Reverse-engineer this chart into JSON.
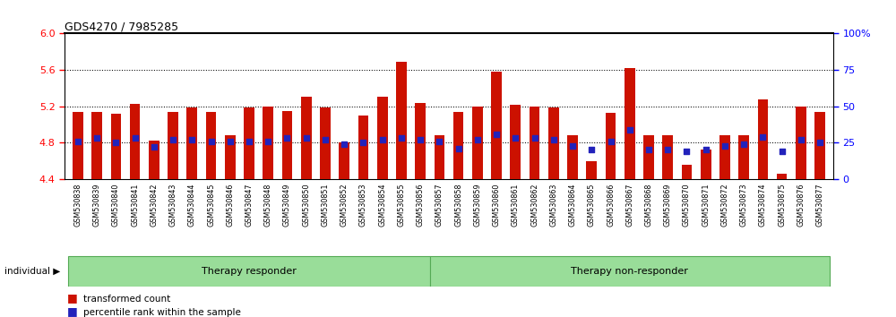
{
  "title": "GDS4270 / 7985285",
  "samples": [
    "GSM530838",
    "GSM530839",
    "GSM530840",
    "GSM530841",
    "GSM530842",
    "GSM530843",
    "GSM530844",
    "GSM530845",
    "GSM530846",
    "GSM530847",
    "GSM530848",
    "GSM530849",
    "GSM530850",
    "GSM530851",
    "GSM530852",
    "GSM530853",
    "GSM530854",
    "GSM530855",
    "GSM530856",
    "GSM530857",
    "GSM530858",
    "GSM530859",
    "GSM530860",
    "GSM530861",
    "GSM530862",
    "GSM530863",
    "GSM530864",
    "GSM530865",
    "GSM530866",
    "GSM530867",
    "GSM530868",
    "GSM530869",
    "GSM530870",
    "GSM530871",
    "GSM530872",
    "GSM530873",
    "GSM530874",
    "GSM530875",
    "GSM530876",
    "GSM530877"
  ],
  "bar_values": [
    5.14,
    5.14,
    5.12,
    5.23,
    4.82,
    5.14,
    5.19,
    5.14,
    4.88,
    5.19,
    5.2,
    5.15,
    5.3,
    5.19,
    4.8,
    5.1,
    5.3,
    5.69,
    5.24,
    4.88,
    5.14,
    5.2,
    5.58,
    5.22,
    5.2,
    5.19,
    4.88,
    4.6,
    5.13,
    5.62,
    4.88,
    4.88,
    4.56,
    4.72,
    4.88,
    4.88,
    5.27,
    4.46,
    5.2,
    5.14
  ],
  "percentile_values": [
    26,
    28,
    25,
    28,
    22,
    27,
    27,
    26,
    26,
    26,
    26,
    28,
    28,
    27,
    24,
    25,
    27,
    28,
    27,
    26,
    21,
    27,
    31,
    28,
    28,
    27,
    23,
    20,
    26,
    34,
    20,
    20,
    19,
    20,
    23,
    24,
    29,
    19,
    27,
    25
  ],
  "n_responder": 19,
  "n_total": 40,
  "ylim_left": [
    4.4,
    6.0
  ],
  "ylim_right": [
    0,
    100
  ],
  "yticks_left": [
    4.4,
    4.8,
    5.2,
    5.6,
    6.0
  ],
  "yticks_right": [
    0,
    25,
    50,
    75,
    100
  ],
  "grid_values": [
    4.8,
    5.2,
    5.6
  ],
  "bar_color": "#cc1100",
  "dot_color": "#2222bb",
  "bar_width": 0.55,
  "group_band_color": "#99dd99",
  "group_band_edge": "#55aa55",
  "xtick_bg_color": "#cccccc",
  "label_responder": "Therapy responder",
  "label_nonresponder": "Therapy non-responder",
  "legend_bar_label": "transformed count",
  "legend_dot_label": "percentile rank within the sample",
  "individual_label": "individual"
}
